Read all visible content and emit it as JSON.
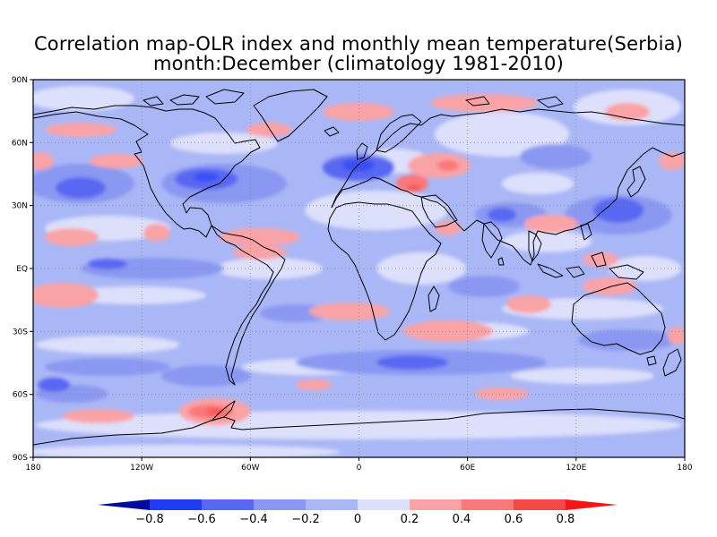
{
  "title_line1": "Correlation map-OLR index and monthly mean temperature(Serbia)",
  "title_line2": "month:December (climatology 1981-2010)",
  "lat_ticks": [
    {
      "lat": 90,
      "label": "90N"
    },
    {
      "lat": 60,
      "label": "60N"
    },
    {
      "lat": 30,
      "label": "30N"
    },
    {
      "lat": 0,
      "label": "EQ"
    },
    {
      "lat": -30,
      "label": "30S"
    },
    {
      "lat": -60,
      "label": "60S"
    },
    {
      "lat": -90,
      "label": "90S"
    }
  ],
  "lon_ticks": [
    {
      "lon": -180,
      "label": "180"
    },
    {
      "lon": -120,
      "label": "120W"
    },
    {
      "lon": -60,
      "label": "60W"
    },
    {
      "lon": 0,
      "label": "0"
    },
    {
      "lon": 60,
      "label": "60E"
    },
    {
      "lon": 120,
      "label": "120E"
    },
    {
      "lon": 180,
      "label": "180"
    }
  ],
  "colorbar": {
    "boundaries": [
      "-0.8",
      "-0.6",
      "-0.4",
      "-0.2",
      "0",
      "0.2",
      "0.4",
      "0.6",
      "0.8"
    ],
    "colors": [
      "#000c9e",
      "#1f3cf5",
      "#5868f2",
      "#8a98f2",
      "#aab7f6",
      "#dde0fa",
      "#faa3a6",
      "#f97879",
      "#f44848",
      "#f41515"
    ]
  },
  "colors": {
    "background_field": "#aab7f6",
    "coastline": "#000000"
  }
}
